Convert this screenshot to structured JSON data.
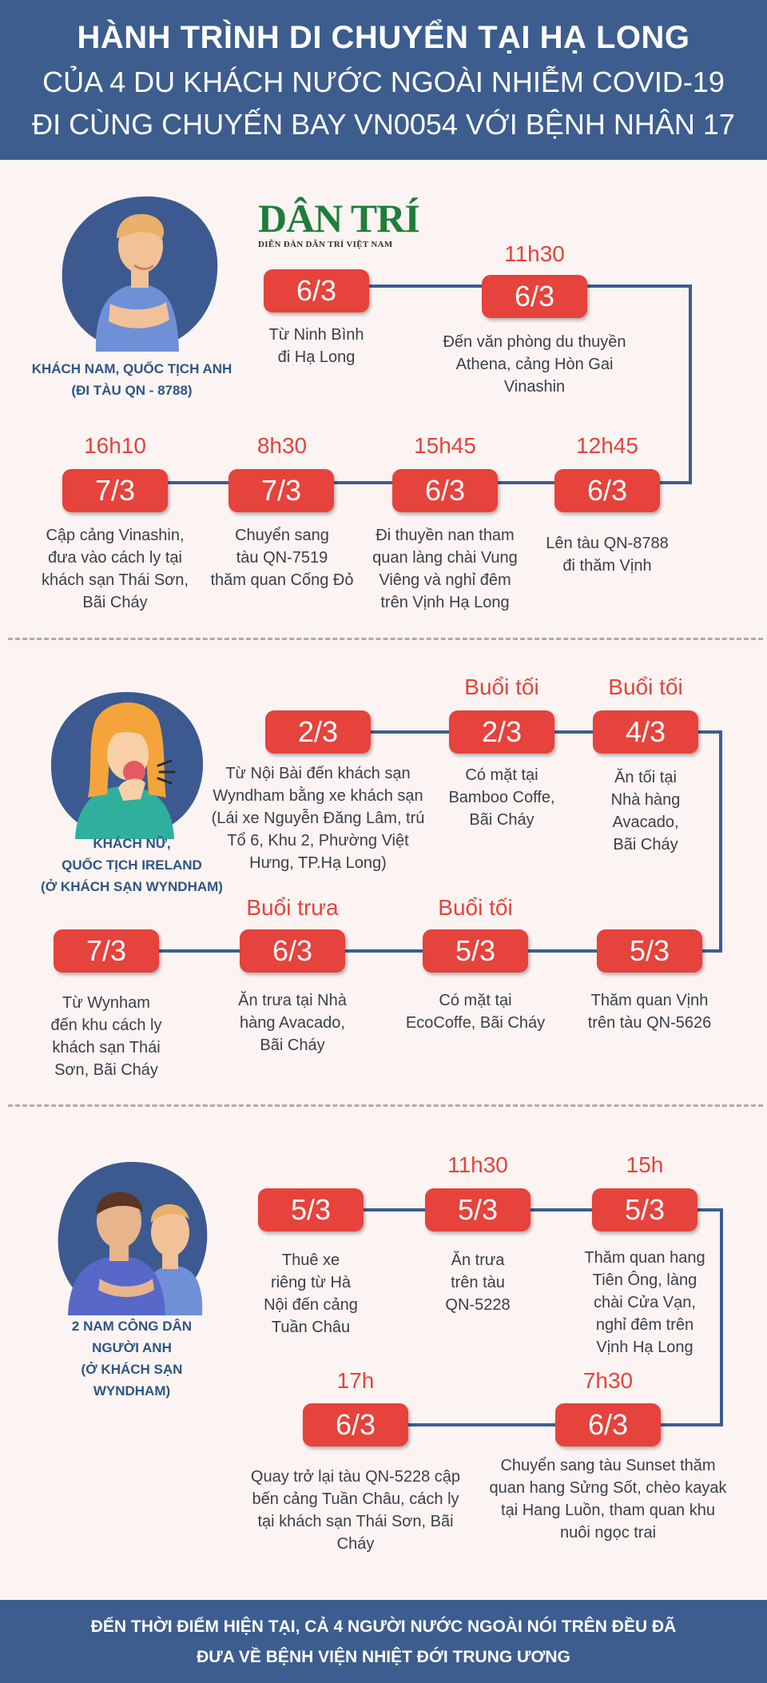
{
  "header": {
    "line1": "HÀNH TRÌNH DI CHUYỂN TẠI HẠ LONG",
    "line2": "CỦA 4 DU KHÁCH NƯỚC NGOÀI NHIỄM COVID-19",
    "line3": "ĐI CÙNG CHUYẾN BAY VN0054 VỚI BỆNH NHÂN 17"
  },
  "logo": {
    "main": "DÂN TRÍ",
    "sub": "DIỄN ĐÀN DÂN TRÍ VIỆT NAM"
  },
  "colors": {
    "accent": "#e5433c",
    "brand": "#3d5d8f",
    "background": "#fbf4f2",
    "logo": "#1f7d3a"
  },
  "sections": [
    {
      "label": "KHÁCH NAM, QUỐC TỊCH ANH\n(ĐI TÀU QN - 8788)",
      "icon": "man-holding-stomach-icon",
      "stops": [
        {
          "time": "",
          "date": "6/3",
          "desc": "Từ Ninh Bình\nđi Hạ Long"
        },
        {
          "time": "11h30",
          "date": "6/3",
          "desc": "Đến văn phòng du thuyền\nAthena, cảng Hòn Gai\nVinashin"
        },
        {
          "time": "12h45",
          "date": "6/3",
          "desc": "Lên tàu QN-8788\nđi thăm Vịnh"
        },
        {
          "time": "15h45",
          "date": "6/3",
          "desc": "Đi thuyền nan tham\nquan làng chài Vung\nViêng và nghỉ đêm\ntrên Vịnh Hạ Long"
        },
        {
          "time": "8h30",
          "date": "7/3",
          "desc": "Chuyển sang\ntàu QN-7519\nthăm quan Cống Đỏ"
        },
        {
          "time": "16h10",
          "date": "7/3",
          "desc": "Cập cảng Vinashin,\nđưa vào cách ly tại\nkhách sạn Thái Sơn,\nBãi Cháy"
        }
      ]
    },
    {
      "label": "KHÁCH NỮ,\nQUỐC TỊCH IRELAND\n(Ở KHÁCH SẠN WYNDHAM)",
      "icon": "woman-coughing-icon",
      "stops": [
        {
          "time": "",
          "date": "2/3",
          "desc": "Từ Nội Bài đến khách sạn\nWyndham bằng xe khách sạn\n(Lái xe Nguyễn Đăng Lâm, trú\nTổ 6, Khu 2, Phường Việt\nHưng, TP.Hạ Long)"
        },
        {
          "time": "Buổi tối",
          "date": "2/3",
          "desc": "Có mặt tại\nBamboo Coffe,\nBãi Cháy"
        },
        {
          "time": "Buổi tối",
          "date": "4/3",
          "desc": "Ăn tối tại\nNhà hàng\nAvacado,\nBãi Cháy"
        },
        {
          "time": "",
          "date": "5/3",
          "desc": "Thăm quan Vịnh\ntrên tàu QN-5626"
        },
        {
          "time": "Buổi tối",
          "date": "5/3",
          "desc": "Có mặt tại\nEcoCoffe, Bãi Cháy"
        },
        {
          "time": "Buổi trưa",
          "date": "6/3",
          "desc": "Ăn trưa tại Nhà\nhàng Avacado,\nBãi Cháy"
        },
        {
          "time": "",
          "date": "7/3",
          "desc": "Từ Wynham\nđến khu cách ly\nkhách sạn Thái\nSơn, Bãi Cháy"
        }
      ]
    },
    {
      "label": "2 NAM CÔNG DÂN\nNGƯỜI ANH\n(Ở KHÁCH SẠN\nWYNDHAM)",
      "icon": "two-men-icon",
      "stops": [
        {
          "time": "",
          "date": "5/3",
          "desc": "Thuê xe\nriêng từ Hà\nNội đến cảng\nTuần Châu"
        },
        {
          "time": "11h30",
          "date": "5/3",
          "desc": "Ăn trưa\ntrên tàu\nQN-5228"
        },
        {
          "time": "15h",
          "date": "5/3",
          "desc": "Thăm quan hang\nTiên Ông, làng\nchài Cửa Vạn,\nnghỉ đêm trên\nVịnh Hạ Long"
        },
        {
          "time": "7h30",
          "date": "6/3",
          "desc": "Chuyển sang tàu Sunset thăm\nquan hang Sửng Sốt, chèo kayak\ntại Hang Luồn, tham quan khu\nnuôi ngọc trai"
        },
        {
          "time": "17h",
          "date": "6/3",
          "desc": "Quay trở lại tàu QN-5228 cập\nbến cảng Tuần Châu, cách ly\ntại khách sạn Thái Sơn, Bãi\nCháy"
        }
      ]
    }
  ],
  "footer": {
    "line1": "ĐẾN THỜI ĐIỂM HIỆN TẠI, CẢ 4 NGƯỜI NƯỚC NGOÀI NÓI TRÊN ĐỀU ĐÃ",
    "line2": "ĐƯA VỀ BỆNH VIỆN NHIỆT ĐỚI TRUNG ƯƠNG"
  }
}
